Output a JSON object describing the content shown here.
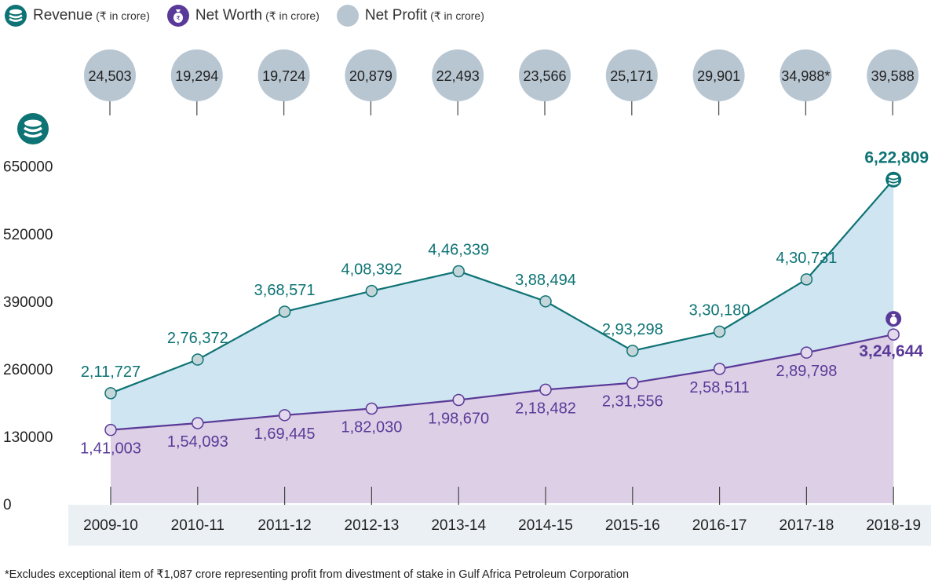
{
  "legend": [
    {
      "label": "Revenue",
      "unit": "(₹ in crore)",
      "icon": "coins-stack-icon",
      "color": "#0e7374"
    },
    {
      "label": "Net Worth",
      "unit": "(₹ in crore)",
      "icon": "money-bag-icon",
      "color": "#5a3a98"
    },
    {
      "label": "Net Profit",
      "unit": "(₹ in crore)",
      "icon": "grey-circle-icon",
      "color": "#b8c6d2"
    }
  ],
  "colors": {
    "revenue_line": "#0e7374",
    "revenue_fill": "#cfe5f1",
    "networth_line": "#5a3a98",
    "networth_fill": "#ddd0e6",
    "profit_bubble": "#b8c6d2",
    "xaxis_band": "#ebf0f4"
  },
  "chart_data": {
    "type": "area",
    "title": "",
    "xlabel": "",
    "ylabel": "",
    "categories": [
      "2009-10",
      "2010-11",
      "2011-12",
      "2012-13",
      "2013-14",
      "2014-15",
      "2015-16",
      "2016-17",
      "2017-18",
      "2018-19"
    ],
    "yticks": [
      "0",
      "130000",
      "260000",
      "390000",
      "520000",
      "650000"
    ],
    "ytick_values": [
      0,
      130000,
      260000,
      390000,
      520000,
      650000
    ],
    "ylim": [
      0,
      650000
    ],
    "grid": false,
    "series": [
      {
        "name": "Revenue (₹ in crore)",
        "values": [
          211727,
          276372,
          368571,
          408392,
          446339,
          388494,
          293298,
          330180,
          430731,
          622809
        ],
        "labels": [
          "2,11,727",
          "2,76,372",
          "3,68,571",
          "4,08,392",
          "4,46,339",
          "3,88,494",
          "2,93,298",
          "3,30,180",
          "4,30,731",
          "6,22,809"
        ]
      },
      {
        "name": "Net Worth (₹ in crore)",
        "values": [
          141003,
          154093,
          169445,
          182030,
          198670,
          218482,
          231556,
          258511,
          289798,
          324644
        ],
        "labels": [
          "1,41,003",
          "1,54,093",
          "1,69,445",
          "1,82,030",
          "1,98,670",
          "2,18,482",
          "2,31,556",
          "2,58,511",
          "2,89,798",
          "3,24,644"
        ]
      },
      {
        "name": "Net Profit (₹ in crore)",
        "values": [
          24503,
          19294,
          19724,
          20879,
          22493,
          23566,
          25171,
          29901,
          34988,
          39588
        ],
        "labels": [
          "24,503",
          "19,294",
          "19,724",
          "20,879",
          "22,493",
          "23,566",
          "25,171",
          "29,901",
          "34,988*",
          "39,588"
        ]
      }
    ]
  },
  "footnote": "*Excludes exceptional item of ₹1,087 crore representing profit from divestment of stake in Gulf Africa Petroleum Corporation"
}
